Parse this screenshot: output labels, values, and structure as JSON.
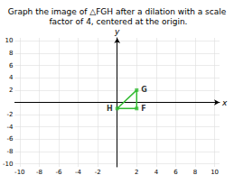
{
  "chart_data": {
    "type": "polygon",
    "title": "Graph the image of △FGH after a dilation with a scale factor of 4, centered at the origin.",
    "xlabel": "x",
    "ylabel": "y",
    "xlim": [
      -10.5,
      10.5
    ],
    "ylim": [
      -10.5,
      10.5
    ],
    "xticks": [
      -10,
      -8,
      -6,
      -4,
      -2,
      2,
      4,
      6,
      8,
      10
    ],
    "yticks": [
      -10,
      -8,
      -6,
      -4,
      -2,
      2,
      4,
      6,
      8,
      10
    ],
    "grid": true,
    "x": [
      2,
      2,
      0
    ],
    "values": [
      2,
      -1,
      -1
    ],
    "labels": [
      "G",
      "F",
      "H"
    ],
    "color": "#33bb33",
    "marker": "square"
  }
}
